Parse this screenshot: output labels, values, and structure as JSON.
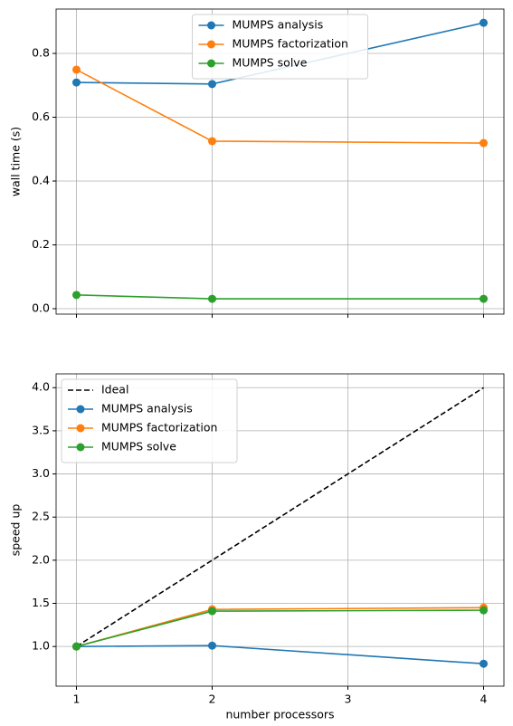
{
  "chart_data": [
    {
      "type": "line",
      "ylabel": "wall time (s)",
      "x": [
        1,
        2,
        4
      ],
      "xlim": [
        0.85,
        4.15
      ],
      "xticks": [
        1,
        2,
        3,
        4
      ],
      "show_xtick_labels": false,
      "ylim": [
        -0.017,
        0.939
      ],
      "yticks": [
        {
          "value": 0,
          "label": "0.0"
        },
        {
          "value": 0.2,
          "label": "0.2"
        },
        {
          "value": 0.4,
          "label": "0.4"
        },
        {
          "value": 0.6,
          "label": "0.6"
        },
        {
          "value": 0.8,
          "label": "0.8"
        }
      ],
      "grid": true,
      "legend": "upper center",
      "series": [
        {
          "name": "MUMPS analysis",
          "color": "#1f77b4",
          "values": [
            0.709,
            0.704,
            0.896
          ],
          "marker": true
        },
        {
          "name": "MUMPS factorization",
          "color": "#ff7f0e",
          "values": [
            0.749,
            0.525,
            0.519
          ],
          "marker": true
        },
        {
          "name": "MUMPS solve",
          "color": "#2ca02c",
          "values": [
            0.043,
            0.031,
            0.031
          ],
          "marker": true
        }
      ]
    },
    {
      "type": "line",
      "ylabel": "speed up",
      "xlabel": "number processors",
      "x": [
        1,
        2,
        4
      ],
      "xlim": [
        0.85,
        4.15
      ],
      "xticks": [
        1,
        2,
        3,
        4
      ],
      "show_xtick_labels": true,
      "ylim": [
        0.54,
        4.16
      ],
      "yticks": [
        {
          "value": 1,
          "label": "1.0"
        },
        {
          "value": 1.5,
          "label": "1.5"
        },
        {
          "value": 2,
          "label": "2.0"
        },
        {
          "value": 2.5,
          "label": "2.5"
        },
        {
          "value": 3,
          "label": "3.0"
        },
        {
          "value": 3.5,
          "label": "3.5"
        },
        {
          "value": 4,
          "label": "4.0"
        }
      ],
      "grid": true,
      "legend": "upper left",
      "series": [
        {
          "name": "Ideal",
          "color": "#000000",
          "values": [
            1,
            2,
            4
          ],
          "dashed": true,
          "marker": false
        },
        {
          "name": "MUMPS analysis",
          "color": "#1f77b4",
          "values": [
            1,
            1.01,
            0.8
          ],
          "marker": true
        },
        {
          "name": "MUMPS factorization",
          "color": "#ff7f0e",
          "values": [
            1,
            1.43,
            1.45
          ],
          "marker": true
        },
        {
          "name": "MUMPS solve",
          "color": "#2ca02c",
          "values": [
            1,
            1.41,
            1.42
          ],
          "marker": true
        }
      ]
    }
  ]
}
